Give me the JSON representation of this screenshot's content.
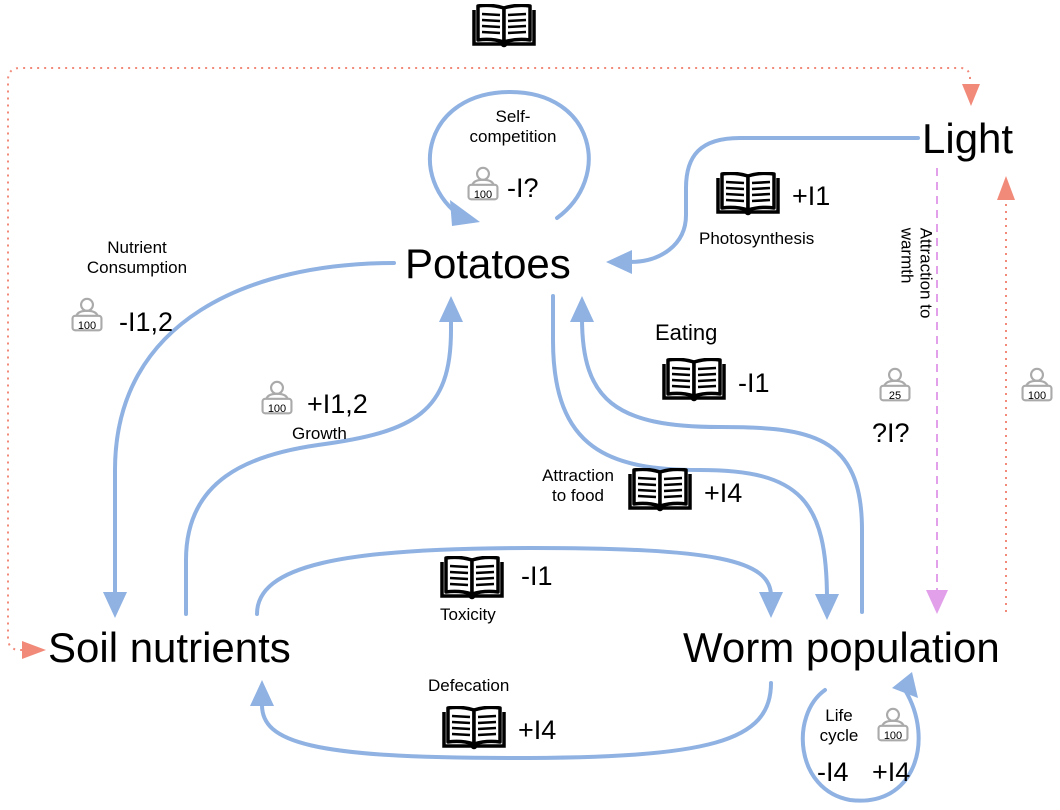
{
  "nodes": {
    "light": "Light",
    "potatoes": "Potatoes",
    "soil": "Soil nutrients",
    "worms": "Worm population"
  },
  "links": {
    "self_competition": {
      "label_line1": "Self-",
      "label_line2": "competition",
      "sign": "-I?",
      "weight": "100"
    },
    "photosynthesis": {
      "label": "Photosynthesis",
      "sign": "+I1"
    },
    "nutrient_consumption": {
      "label_line1": "Nutrient",
      "label_line2": "Consumption",
      "sign": "-I1,2",
      "weight": "100"
    },
    "growth": {
      "label": "Growth",
      "sign": "+I1,2",
      "weight": "100"
    },
    "eating": {
      "label": "Eating",
      "sign": "-I1"
    },
    "attraction_to_food": {
      "label_line1": "Attraction",
      "label_line2": "to food",
      "sign": "+I4"
    },
    "attraction_to_warmth": {
      "label": "Attraction to warmth",
      "sign": "?I?",
      "weight": "25"
    },
    "light_worm_feedback": {
      "weight": "100"
    },
    "toxicity": {
      "label": "Toxicity",
      "sign": "-I1"
    },
    "defecation": {
      "label": "Defecation",
      "sign": "+I4"
    },
    "life_cycle": {
      "label_line1": "Life",
      "label_line2": "cycle",
      "sign_neg": "-I4",
      "sign_pos": "+I4",
      "weight": "100"
    }
  },
  "icons": {
    "source_icon": "book-icon",
    "weight_icon": "person-weight-icon"
  },
  "colors": {
    "influence": "#8fb2e3",
    "light_dotted": "#f28a7a",
    "warmth_dashed": "#e2a0ea",
    "icon_gray": "#aaaaaa"
  }
}
